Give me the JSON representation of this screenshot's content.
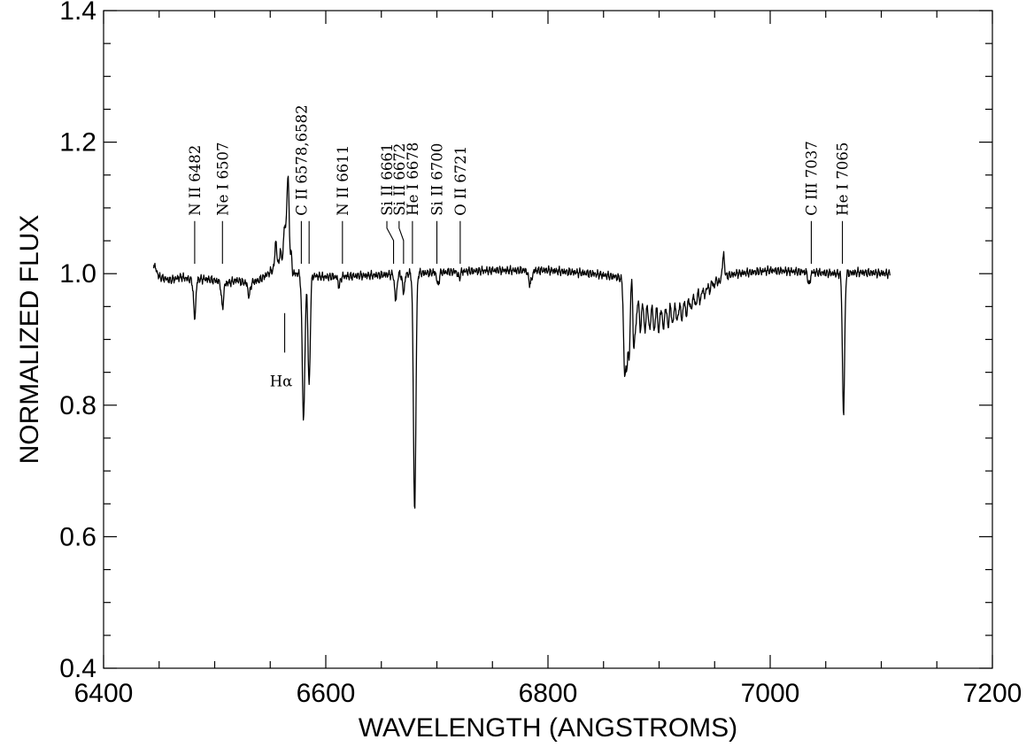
{
  "chart_data": {
    "type": "line",
    "xlabel": "WAVELENGTH (ANGSTROMS)",
    "ylabel": "NORMALIZED FLUX",
    "xlim": [
      6400,
      7200
    ],
    "ylim": [
      0.4,
      1.4
    ],
    "xticks": [
      6400,
      6600,
      6800,
      7000,
      7200
    ],
    "xtick_labels": [
      "6400",
      "6600",
      "6800",
      "7000",
      "7200"
    ],
    "yticks": [
      0.4,
      0.6,
      0.8,
      1.0,
      1.2,
      1.4
    ],
    "ytick_labels": [
      "0.4",
      "0.6",
      "0.8",
      "1.0",
      "1.2",
      "1.4"
    ],
    "grid": false,
    "series": [
      {
        "continuum": [
          [
            6445,
            1.015
          ],
          [
            6450,
            0.995
          ],
          [
            6460,
            0.99
          ],
          [
            6470,
            0.995
          ],
          [
            6480,
            0.99
          ],
          [
            6490,
            0.992
          ],
          [
            6500,
            0.99
          ],
          [
            6510,
            0.985
          ],
          [
            6520,
            0.99
          ],
          [
            6530,
            0.985
          ],
          [
            6540,
            0.99
          ],
          [
            6548,
            1.0
          ],
          [
            6555,
            1.01
          ],
          [
            6560,
            1.02
          ],
          [
            6565,
            1.04
          ],
          [
            6570,
            1.0
          ],
          [
            6575,
            1.0
          ],
          [
            6580,
            0.998
          ],
          [
            6600,
            0.995
          ],
          [
            6650,
            0.998
          ],
          [
            6700,
            1.002
          ],
          [
            6750,
            1.005
          ],
          [
            6800,
            1.005
          ],
          [
            6840,
            1.0
          ],
          [
            6862,
            0.995
          ],
          [
            6870,
            0.99
          ],
          [
            6885,
            0.965
          ],
          [
            6900,
            0.955
          ],
          [
            6920,
            0.96
          ],
          [
            6935,
            0.975
          ],
          [
            6950,
            0.993
          ],
          [
            6970,
            1.0
          ],
          [
            7000,
            1.005
          ],
          [
            7040,
            1.002
          ],
          [
            7060,
            1.0
          ],
          [
            7080,
            1.002
          ],
          [
            7108,
            1.0
          ]
        ],
        "features": [
          [
            6482,
            -0.058,
            1.0
          ],
          [
            6507,
            -0.038,
            1.0
          ],
          [
            6531,
            -0.02,
            1.0
          ],
          [
            6555,
            0.04,
            0.8
          ],
          [
            6559,
            0.018,
            0.6
          ],
          [
            6563,
            0.04,
            0.9
          ],
          [
            6566,
            0.115,
            1.0
          ],
          [
            6569,
            0.02,
            0.6
          ],
          [
            6580,
            -0.218,
            1.2
          ],
          [
            6585,
            -0.168,
            1.0
          ],
          [
            6612,
            -0.015,
            1.0
          ],
          [
            6663,
            -0.04,
            1.0
          ],
          [
            6670,
            -0.028,
            1.0
          ],
          [
            6680,
            -0.362,
            1.1
          ],
          [
            6701,
            -0.02,
            1.0
          ],
          [
            6720,
            -0.01,
            1.0
          ],
          [
            6784,
            -0.02,
            1.5
          ],
          [
            6869,
            -0.14,
            1.0
          ],
          [
            6871,
            -0.11,
            0.8
          ],
          [
            6873,
            -0.115,
            0.8
          ],
          [
            6876,
            0.03,
            0.6
          ],
          [
            6877,
            -0.09,
            0.8
          ],
          [
            7035,
            -0.02,
            1.0
          ],
          [
            7066,
            -0.215,
            1.0
          ],
          [
            6958,
            0.035,
            0.8
          ]
        ],
        "band_lines": {
          "start": 6879,
          "end": 6955,
          "spacing": 4.15,
          "max_depth": 0.055,
          "width": 1.0
        }
      }
    ],
    "line_ids": [
      {
        "label": "N  II  6482",
        "wl": 6482,
        "y_top": 1.015
      },
      {
        "label": "Ne  I  6507",
        "wl": 6507,
        "y_top": 1.015
      },
      {
        "label": "C  II  6578,6582",
        "wl": 6582,
        "y_top": 1.015,
        "offsets": [
          6578,
          6585
        ]
      },
      {
        "label": "N  II  6611",
        "wl": 6615,
        "y_top": 1.015
      },
      {
        "label": "Si  II  6661",
        "wl": 6661,
        "y_top": 1.015,
        "slant_from": 6655
      },
      {
        "label": "Si  II  6672",
        "wl": 6670,
        "y_top": 1.015,
        "slant_from": 6666
      },
      {
        "label": "He  I  6678",
        "wl": 6678,
        "y_top": 1.015
      },
      {
        "label": "Si  II  6700",
        "wl": 6700,
        "y_top": 1.015
      },
      {
        "label": "O  II  6721",
        "wl": 6721,
        "y_top": 1.015
      },
      {
        "label": "C  III  7037",
        "wl": 7037,
        "y_top": 1.015
      },
      {
        "label": "He  I  7065",
        "wl": 7065,
        "y_top": 1.015
      }
    ],
    "halpha": {
      "label": "Hα",
      "wl": 6563,
      "y_top": 0.94,
      "y_bot": 0.88
    }
  }
}
